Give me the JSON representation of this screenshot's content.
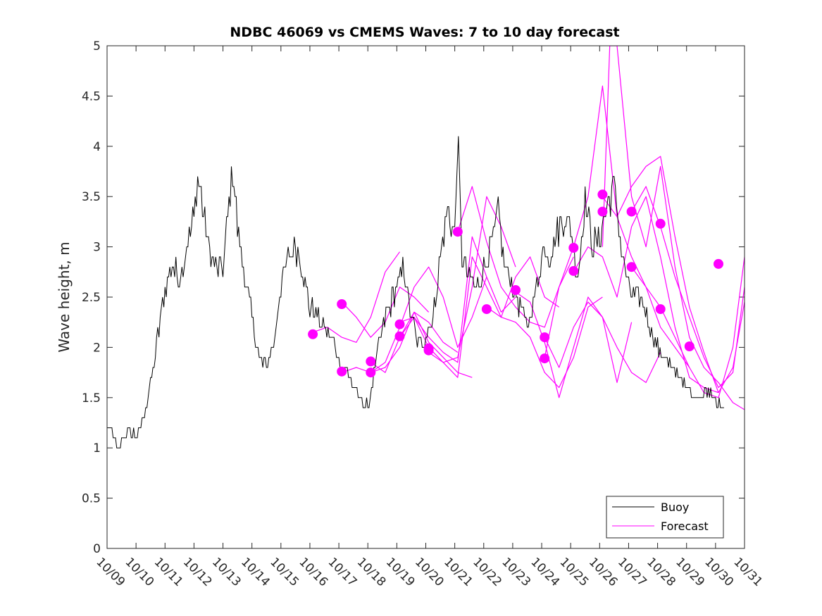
{
  "chart_data": {
    "type": "line",
    "title": "NDBC 46069 vs CMEMS Waves: 7 to 10 day forecast",
    "xlabel": "",
    "ylabel": "Wave height, m",
    "xlim": [
      0,
      22
    ],
    "ylim": [
      0,
      5
    ],
    "x_tick_labels": [
      "10/09",
      "10/10",
      "10/11",
      "10/12",
      "10/13",
      "10/14",
      "10/15",
      "10/16",
      "10/17",
      "10/18",
      "10/19",
      "10/20",
      "10/21",
      "10/22",
      "10/23",
      "10/24",
      "10/25",
      "10/26",
      "10/27",
      "10/28",
      "10/29",
      "10/30",
      "10/31"
    ],
    "y_ticks": [
      0,
      0.5,
      1,
      1.5,
      2,
      2.5,
      3,
      3.5,
      4,
      4.5,
      5
    ],
    "y_tick_labels": [
      "0",
      "0.5",
      "1",
      "1.5",
      "2",
      "2.5",
      "3",
      "3.5",
      "4",
      "4.5",
      "5"
    ],
    "colors": {
      "buoy": "#000000",
      "forecast": "#ff00ff"
    },
    "legend": {
      "location": "bottom-right",
      "entries": [
        "Buoy",
        "Forecast"
      ]
    },
    "buoy": {
      "name": "Buoy",
      "x": [
        0,
        0.25,
        0.35,
        0.5,
        0.75,
        1,
        1.25,
        1.5,
        1.75,
        2,
        2.25,
        2.5,
        2.75,
        3,
        3.15,
        3.3,
        3.5,
        3.75,
        4,
        4.2,
        4.35,
        4.5,
        4.75,
        5,
        5.25,
        5.5,
        5.75,
        5.9,
        6,
        6.25,
        6.5,
        6.75,
        7,
        7.25,
        7.5,
        7.75,
        8,
        8.25,
        8.5,
        8.75,
        9,
        9.25,
        9.5,
        9.75,
        10,
        10.25,
        10.5,
        10.75,
        11,
        11.25,
        11.5,
        11.75,
        12,
        12.1,
        12.25,
        12.5,
        12.75,
        13,
        13.25,
        13.5,
        13.75,
        14,
        14.25,
        14.5,
        14.75,
        15,
        15.1,
        15.25,
        15.5,
        15.75,
        16,
        16.25,
        16.5,
        16.75,
        17,
        17.25,
        17.5,
        17.75,
        18,
        18.25,
        18.5,
        18.75,
        19,
        19.25,
        19.5,
        19.75,
        20,
        20.25,
        20.5,
        20.75,
        21,
        21.15,
        21.3
      ],
      "y": [
        1.2,
        1.1,
        0.9,
        1.1,
        1.2,
        1.1,
        1.3,
        1.6,
        2.1,
        2.6,
        2.8,
        2.7,
        3.0,
        3.3,
        3.7,
        3.4,
        3.0,
        2.8,
        2.8,
        3.4,
        3.8,
        3.2,
        2.7,
        2.3,
        1.9,
        1.8,
        2.0,
        2.4,
        2.6,
        2.9,
        3.0,
        2.8,
        2.4,
        2.3,
        2.2,
        2.1,
        1.9,
        1.8,
        1.6,
        1.5,
        1.4,
        1.8,
        2.2,
        2.4,
        2.6,
        2.8,
        2.3,
        2.0,
        2.1,
        2.3,
        2.9,
        3.4,
        3.1,
        4.1,
        2.9,
        2.7,
        2.6,
        2.8,
        3.0,
        3.3,
        2.8,
        2.6,
        2.4,
        2.2,
        2.5,
        2.9,
        3.0,
        2.9,
        3.1,
        3.3,
        3.2,
        2.7,
        3.5,
        3.0,
        3.1,
        3.4,
        3.6,
        3.0,
        2.6,
        2.5,
        2.4,
        2.2,
        2.0,
        1.9,
        1.8,
        1.7,
        1.6,
        1.5,
        1.5,
        1.6,
        1.5,
        1.4,
        1.4
      ]
    },
    "forecast_series": [
      {
        "name": "Forecast 1",
        "x": [
          7.1,
          7.6,
          8.1,
          8.6,
          9.1,
          9.6,
          10.1
        ],
        "y": [
          2.15,
          2.2,
          2.1,
          2.05,
          2.3,
          2.75,
          2.95
        ]
      },
      {
        "name": "Forecast 2",
        "x": [
          8.1,
          8.6,
          9.1,
          9.6,
          10.1,
          10.6,
          11.1
        ],
        "y": [
          2.45,
          2.3,
          2.1,
          2.25,
          2.6,
          2.5,
          2.35
        ]
      },
      {
        "name": "Forecast 3",
        "x": [
          8.1,
          8.6,
          9.1,
          9.6,
          10.1,
          10.6,
          11.1,
          11.6,
          12.1
        ],
        "y": [
          1.75,
          1.8,
          1.75,
          1.8,
          2.0,
          2.35,
          2.25,
          2.05,
          1.95
        ]
      },
      {
        "name": "Forecast 4",
        "x": [
          9.1,
          9.6,
          10.1,
          10.6,
          11.1,
          11.6,
          12.1,
          12.6
        ],
        "y": [
          1.85,
          1.75,
          2.1,
          2.35,
          2.05,
          1.9,
          1.75,
          1.7
        ]
      },
      {
        "name": "Forecast 5",
        "x": [
          9.1,
          9.6,
          10.1,
          10.6,
          11.1,
          11.6,
          12.1,
          12.6,
          13.1
        ],
        "y": [
          1.75,
          1.85,
          2.2,
          2.6,
          2.8,
          2.5,
          2.0,
          2.3,
          2.7
        ]
      },
      {
        "name": "Forecast 6",
        "x": [
          10.1,
          10.6,
          11.1,
          11.6,
          12.1,
          12.6,
          13.1,
          13.6,
          14.1
        ],
        "y": [
          2.1,
          2.3,
          2.0,
          1.85,
          1.9,
          2.6,
          3.5,
          3.2,
          2.8
        ]
      },
      {
        "name": "Forecast 7",
        "x": [
          10.1,
          10.6,
          11.1,
          11.6,
          12.1,
          12.6,
          13.1,
          13.6,
          14.1
        ],
        "y": [
          2.25,
          2.3,
          2.1,
          1.95,
          1.85,
          3.1,
          2.7,
          2.35,
          2.5
        ]
      },
      {
        "name": "Forecast 8",
        "x": [
          11.1,
          11.6,
          12.1,
          12.6,
          13.1,
          13.6,
          14.1,
          14.6,
          15.1,
          15.6
        ],
        "y": [
          1.95,
          1.85,
          1.7,
          2.9,
          2.6,
          2.3,
          2.7,
          2.9,
          2.5,
          2.4
        ]
      },
      {
        "name": "Forecast 9",
        "x": [
          12.1,
          12.6,
          13.1,
          13.6,
          14.1,
          14.6,
          15.1,
          15.6,
          16.1
        ],
        "y": [
          3.15,
          3.6,
          3.05,
          2.6,
          2.4,
          2.25,
          2.2,
          2.6,
          2.9
        ]
      },
      {
        "name": "Forecast 10",
        "x": [
          13.1,
          13.6,
          14.1,
          14.6,
          15.1,
          15.6,
          16.1,
          16.6,
          17.1
        ],
        "y": [
          2.4,
          2.3,
          2.25,
          2.1,
          1.75,
          1.6,
          1.9,
          2.4,
          2.5
        ]
      },
      {
        "name": "Forecast 11",
        "x": [
          14.1,
          14.6,
          15.1,
          15.6,
          16.1,
          16.6,
          17.1,
          17.6,
          18.1
        ],
        "y": [
          2.55,
          2.45,
          2.05,
          1.5,
          2.0,
          2.5,
          2.3,
          1.65,
          2.25
        ]
      },
      {
        "name": "Forecast 12",
        "x": [
          15.1,
          15.6,
          16.1,
          16.6,
          17.1,
          17.6,
          18.1,
          18.6,
          19.1
        ],
        "y": [
          2.1,
          1.8,
          2.2,
          2.45,
          2.3,
          2.0,
          1.75,
          1.65,
          1.95
        ]
      },
      {
        "name": "Forecast 13",
        "x": [
          15.1,
          15.6,
          16.1,
          16.6,
          17.1,
          17.6,
          18.1,
          18.6,
          19.1,
          19.6,
          20.1
        ],
        "y": [
          1.9,
          2.6,
          3.0,
          3.5,
          4.6,
          3.3,
          2.9,
          2.6,
          2.2,
          2.0,
          1.8
        ]
      },
      {
        "name": "Forecast 14",
        "x": [
          16.1,
          16.6,
          17.1,
          17.6,
          18.1,
          18.6,
          19.1,
          19.6,
          20.1,
          20.6,
          21.1
        ],
        "y": [
          2.75,
          3.0,
          2.9,
          2.5,
          3.2,
          3.5,
          2.9,
          2.2,
          1.7,
          1.6,
          1.55
        ]
      },
      {
        "name": "Forecast 15",
        "x": [
          17.1,
          17.35,
          17.6,
          18.1,
          18.6,
          19.1,
          19.6,
          20.1,
          20.6,
          21.1,
          21.6,
          22.0
        ],
        "y": [
          3.0,
          5.0,
          5.0,
          3.5,
          3.0,
          3.8,
          2.8,
          2.1,
          1.8,
          1.65,
          1.45,
          1.38
        ]
      },
      {
        "name": "Forecast 16",
        "x": [
          17.1,
          17.6,
          18.1,
          18.6,
          19.1,
          19.6,
          20.1,
          20.6,
          21.1,
          21.6,
          22.0
        ],
        "y": [
          3.5,
          3.3,
          3.6,
          3.8,
          3.9,
          3.1,
          2.4,
          1.95,
          1.55,
          1.8,
          2.45
        ]
      },
      {
        "name": "Forecast 17",
        "x": [
          18.1,
          18.6,
          19.1,
          19.6,
          20.1,
          20.6,
          21.1,
          21.6,
          22.0
        ],
        "y": [
          3.35,
          3.6,
          3.2,
          2.7,
          2.3,
          1.9,
          1.6,
          1.75,
          2.6
        ]
      },
      {
        "name": "Forecast 18",
        "x": [
          18.1,
          18.6,
          19.1,
          19.6,
          20.1,
          20.6,
          21.1,
          21.6,
          22.0
        ],
        "y": [
          2.8,
          2.6,
          2.4,
          2.1,
          1.8,
          1.55,
          1.5,
          2.0,
          2.9
        ]
      }
    ],
    "forecast_markers": {
      "x": [
        7.1,
        8.1,
        8.1,
        9.1,
        9.1,
        10.1,
        10.1,
        11.1,
        11.1,
        12.1,
        13.1,
        14.1,
        15.1,
        15.1,
        16.1,
        16.1,
        17.1,
        17.1,
        18.1,
        18.1,
        19.1,
        19.1,
        20.1,
        21.1
      ],
      "y": [
        2.13,
        2.43,
        1.76,
        1.86,
        1.75,
        2.23,
        2.11,
        1.99,
        1.97,
        3.15,
        2.38,
        2.57,
        2.1,
        1.89,
        2.99,
        2.76,
        3.52,
        3.35,
        3.35,
        2.8,
        3.23,
        2.38,
        2.01,
        2.83
      ]
    }
  }
}
